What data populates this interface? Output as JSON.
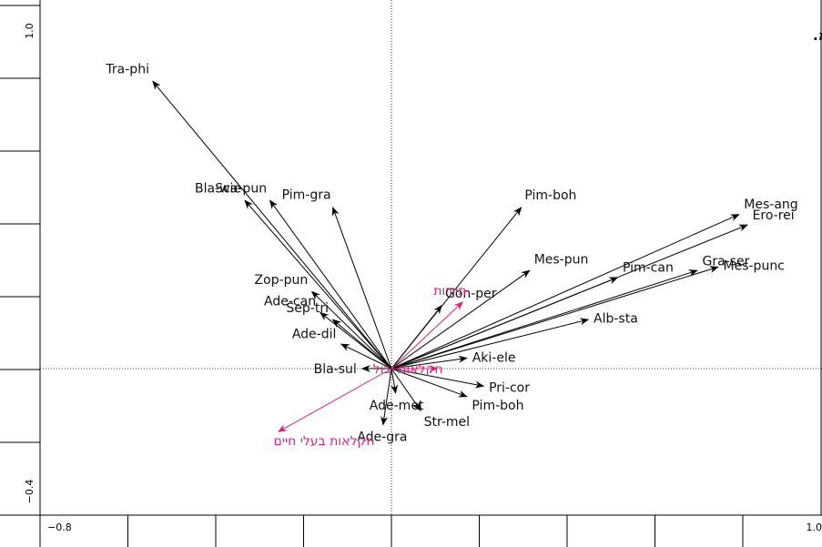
{
  "colors": {
    "species_arrow": "#000000",
    "env_arrow": "#d6247f",
    "axis": "#000000"
  },
  "chart_data": {
    "type": "biplot",
    "panel_label": "א.",
    "xlim": [
      -0.8,
      1.0
    ],
    "ylim": [
      -0.4,
      1.0
    ],
    "x_tick_labels": {
      "min": "−0.8",
      "max": "1.0"
    },
    "y_tick_labels": {
      "min": "−0.4",
      "max": "1.0"
    },
    "species": [
      {
        "name": "Tra-phi",
        "x": -0.57,
        "y": 0.82
      },
      {
        "name": "Bla-wie",
        "x": -0.35,
        "y": 0.48
      },
      {
        "name": "Sca-pun",
        "x": -0.29,
        "y": 0.48
      },
      {
        "name": "Pim-gra",
        "x": -0.14,
        "y": 0.46
      },
      {
        "name": "Pim-boh",
        "x": 0.31,
        "y": 0.46
      },
      {
        "name": "Mes-ang",
        "x": 0.83,
        "y": 0.44
      },
      {
        "name": "Ero-rei",
        "x": 0.85,
        "y": 0.41
      },
      {
        "name": "Mes-pun",
        "x": 0.33,
        "y": 0.28
      },
      {
        "name": "Pim-can",
        "x": 0.54,
        "y": 0.26
      },
      {
        "name": "Mes-punc",
        "x": 0.78,
        "y": 0.29
      },
      {
        "name": "Gra-ser",
        "x": 0.73,
        "y": 0.28
      },
      {
        "name": "Gon-per",
        "x": 0.12,
        "y": 0.18
      },
      {
        "name": "Zop-pun",
        "x": -0.19,
        "y": 0.22
      },
      {
        "name": "Ade-can",
        "x": -0.17,
        "y": 0.16
      },
      {
        "name": "Sep-tri",
        "x": -0.14,
        "y": 0.14
      },
      {
        "name": "Alb-sta",
        "x": 0.47,
        "y": 0.14
      },
      {
        "name": "Ade-dil",
        "x": -0.12,
        "y": 0.07
      },
      {
        "name": "Aki-ele",
        "x": 0.18,
        "y": 0.03
      },
      {
        "name": "Bla-sul",
        "x": -0.07,
        "y": 0.0
      },
      {
        "name": "Pri-cor",
        "x": 0.22,
        "y": -0.05
      },
      {
        "name": "Pim-boh",
        "x": 0.18,
        "y": -0.08
      },
      {
        "name": "Ade-met",
        "x": 0.01,
        "y": -0.07
      },
      {
        "name": "Str-mel",
        "x": 0.07,
        "y": -0.12
      },
      {
        "name": "Ade-gra",
        "x": -0.02,
        "y": -0.16
      }
    ],
    "environment": [
      {
        "name": "תיירות",
        "x": 0.17,
        "y": 0.19
      },
      {
        "name": "חקלאות יבול",
        "x": 0.11,
        "y": 0.0
      },
      {
        "name": "חקלאות בעלי חיים",
        "x": -0.27,
        "y": -0.18
      }
    ]
  }
}
